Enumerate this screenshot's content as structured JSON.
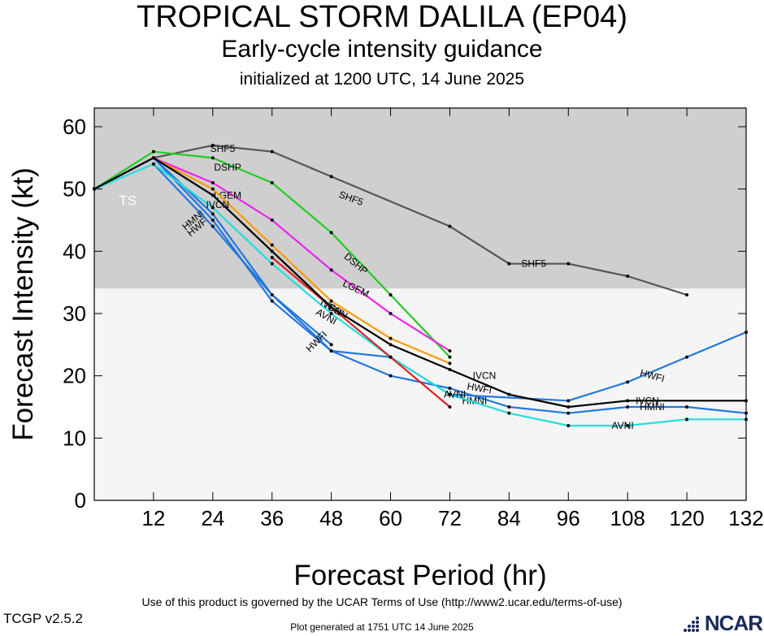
{
  "header": {
    "title": "TROPICAL STORM DALILA (EP04)",
    "subtitle": "Early-cycle intensity guidance",
    "init_text": "initialized at 1200 UTC, 14 June 2025"
  },
  "footer": {
    "terms": "Use of this product is governed by the UCAR Terms of Use (http://www2.ucar.edu/terms-of-use)",
    "version": "TCGP v2.5.2",
    "generated": "Plot generated at 1751 UTC   14 June 2025",
    "logo": "NCAR"
  },
  "chart_data": {
    "type": "line",
    "xlabel": "Forecast Period (hr)",
    "ylabel": "Forecast Intensity (kt)",
    "xlim": [
      0,
      132
    ],
    "ylim": [
      0,
      63
    ],
    "xticks": [
      12,
      24,
      36,
      48,
      60,
      72,
      84,
      96,
      108,
      120,
      132
    ],
    "yticks": [
      0,
      10,
      20,
      30,
      40,
      50,
      60
    ],
    "bands": [
      {
        "label": "TS",
        "from": 34,
        "to": 63,
        "color": "#cfcfcf"
      },
      {
        "label": "",
        "from": 0,
        "to": 34,
        "color": "#f5f5f5"
      }
    ],
    "series": [
      {
        "name": "SHF5",
        "color": "#555555",
        "x": [
          0,
          12,
          24,
          36,
          48,
          72,
          84,
          96,
          108,
          120
        ],
        "y": [
          50,
          55,
          57,
          56,
          52,
          44,
          38,
          38,
          36,
          33
        ],
        "labels": [
          {
            "x": 26,
            "y": 56.5
          },
          {
            "x": 52,
            "y": 48.5,
            "rot": 20
          },
          {
            "x": 89,
            "y": 38
          }
        ]
      },
      {
        "name": "DSHP",
        "color": "#22cc22",
        "x": [
          0,
          12,
          24,
          36,
          48,
          60,
          72
        ],
        "y": [
          50,
          56,
          55,
          51,
          43,
          33,
          23
        ],
        "labels": [
          {
            "x": 27,
            "y": 53.5
          },
          {
            "x": 53,
            "y": 38,
            "rot": 40
          }
        ]
      },
      {
        "name": "LGEM",
        "color": "#ee22ee",
        "x": [
          0,
          12,
          24,
          36,
          48,
          60,
          72
        ],
        "y": [
          50,
          55,
          51,
          45,
          37,
          30,
          24
        ],
        "labels": [
          {
            "x": 27,
            "y": 49
          },
          {
            "x": 53,
            "y": 34,
            "rot": 25
          }
        ]
      },
      {
        "name": "ICON",
        "color": "#ff9900",
        "x": [
          0,
          12,
          24,
          36,
          48,
          60,
          72
        ],
        "y": [
          50,
          55,
          50,
          41,
          32,
          26,
          22
        ],
        "labels": [
          {
            "x": 49,
            "y": 30.5,
            "rot": 30
          }
        ]
      },
      {
        "name": "HWFI",
        "color": "#2277dd",
        "x": [
          0,
          12,
          24,
          36,
          48,
          60,
          72,
          96,
          108,
          120,
          132
        ],
        "y": [
          50,
          55,
          46,
          33,
          24,
          23,
          17,
          16,
          19,
          23,
          27
        ],
        "labels": [
          {
            "x": 21,
            "y": 44,
            "rot": -40
          },
          {
            "x": 78,
            "y": 18,
            "rot": 10
          },
          {
            "x": 113,
            "y": 20,
            "rot": 15
          }
        ]
      },
      {
        "name": "HMNI",
        "color": "#2277dd",
        "x": [
          0,
          12,
          24,
          36,
          48,
          60,
          72,
          84,
          96,
          108,
          120,
          132
        ],
        "y": [
          50,
          55,
          45,
          32,
          24,
          20,
          18,
          15,
          14,
          15,
          15,
          14
        ],
        "labels": [
          {
            "x": 20,
            "y": 45,
            "rot": -40
          },
          {
            "x": 77,
            "y": 16
          },
          {
            "x": 113,
            "y": 15
          }
        ]
      },
      {
        "name": "HWFI",
        "color": "#2277dd",
        "x": [
          12,
          24,
          36,
          48
        ],
        "y": [
          54,
          44,
          33,
          25
        ],
        "labels": [
          {
            "x": 45,
            "y": 25.5,
            "rot": -45
          }
        ]
      },
      {
        "name": "AVNI",
        "color": "#22dddd",
        "x": [
          0,
          12,
          24,
          36,
          48,
          60,
          72,
          84,
          96,
          108,
          120,
          132
        ],
        "y": [
          50,
          54,
          47,
          38,
          30,
          23,
          17,
          14,
          12,
          12,
          13,
          13
        ],
        "labels": [
          {
            "x": 47,
            "y": 29.5,
            "rot": 30
          },
          {
            "x": 73,
            "y": 17
          },
          {
            "x": 107,
            "y": 12
          }
        ]
      },
      {
        "name": "",
        "color": "#dd2222",
        "x": [
          36,
          48,
          60,
          72
        ],
        "y": [
          39,
          31,
          23,
          15
        ],
        "labels": []
      },
      {
        "name": "IVCN",
        "color": "#000000",
        "x": [
          0,
          12,
          24,
          36,
          48,
          60,
          72,
          84,
          96,
          108,
          132
        ],
        "y": [
          50,
          55,
          49,
          40,
          31,
          25,
          21,
          17,
          15,
          16,
          16
        ],
        "labels": [
          {
            "x": 25,
            "y": 47.5
          },
          {
            "x": 48,
            "y": 31,
            "rot": 30
          },
          {
            "x": 79,
            "y": 20
          },
          {
            "x": 112,
            "y": 16
          }
        ]
      }
    ]
  }
}
